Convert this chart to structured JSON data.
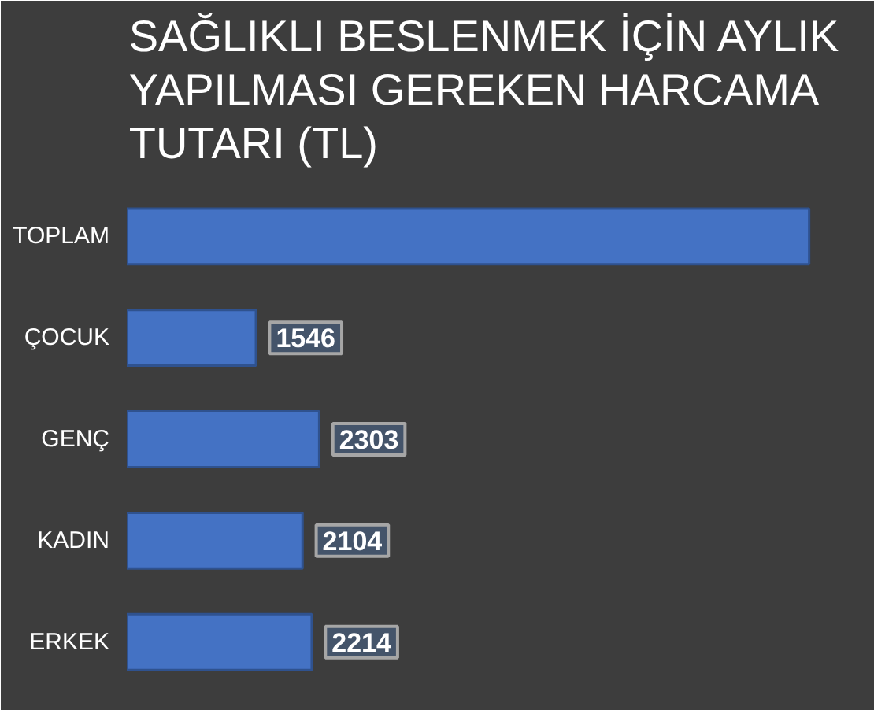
{
  "chart_data": {
    "type": "bar",
    "orientation": "horizontal",
    "title": "SAĞLIKLI BESLENMEK İÇİN AYLIK YAPILMASI GEREKEN HARCAMA TUTARI (TL)",
    "categories": [
      "TOPLAM",
      "ÇOCUK",
      "GENÇ",
      "KADIN",
      "ERKEK"
    ],
    "values": [
      8167,
      1546,
      2303,
      2104,
      2214
    ],
    "value_labels": [
      null,
      "1546",
      "2303",
      "2104",
      "2214"
    ],
    "color": "#4472c4"
  }
}
